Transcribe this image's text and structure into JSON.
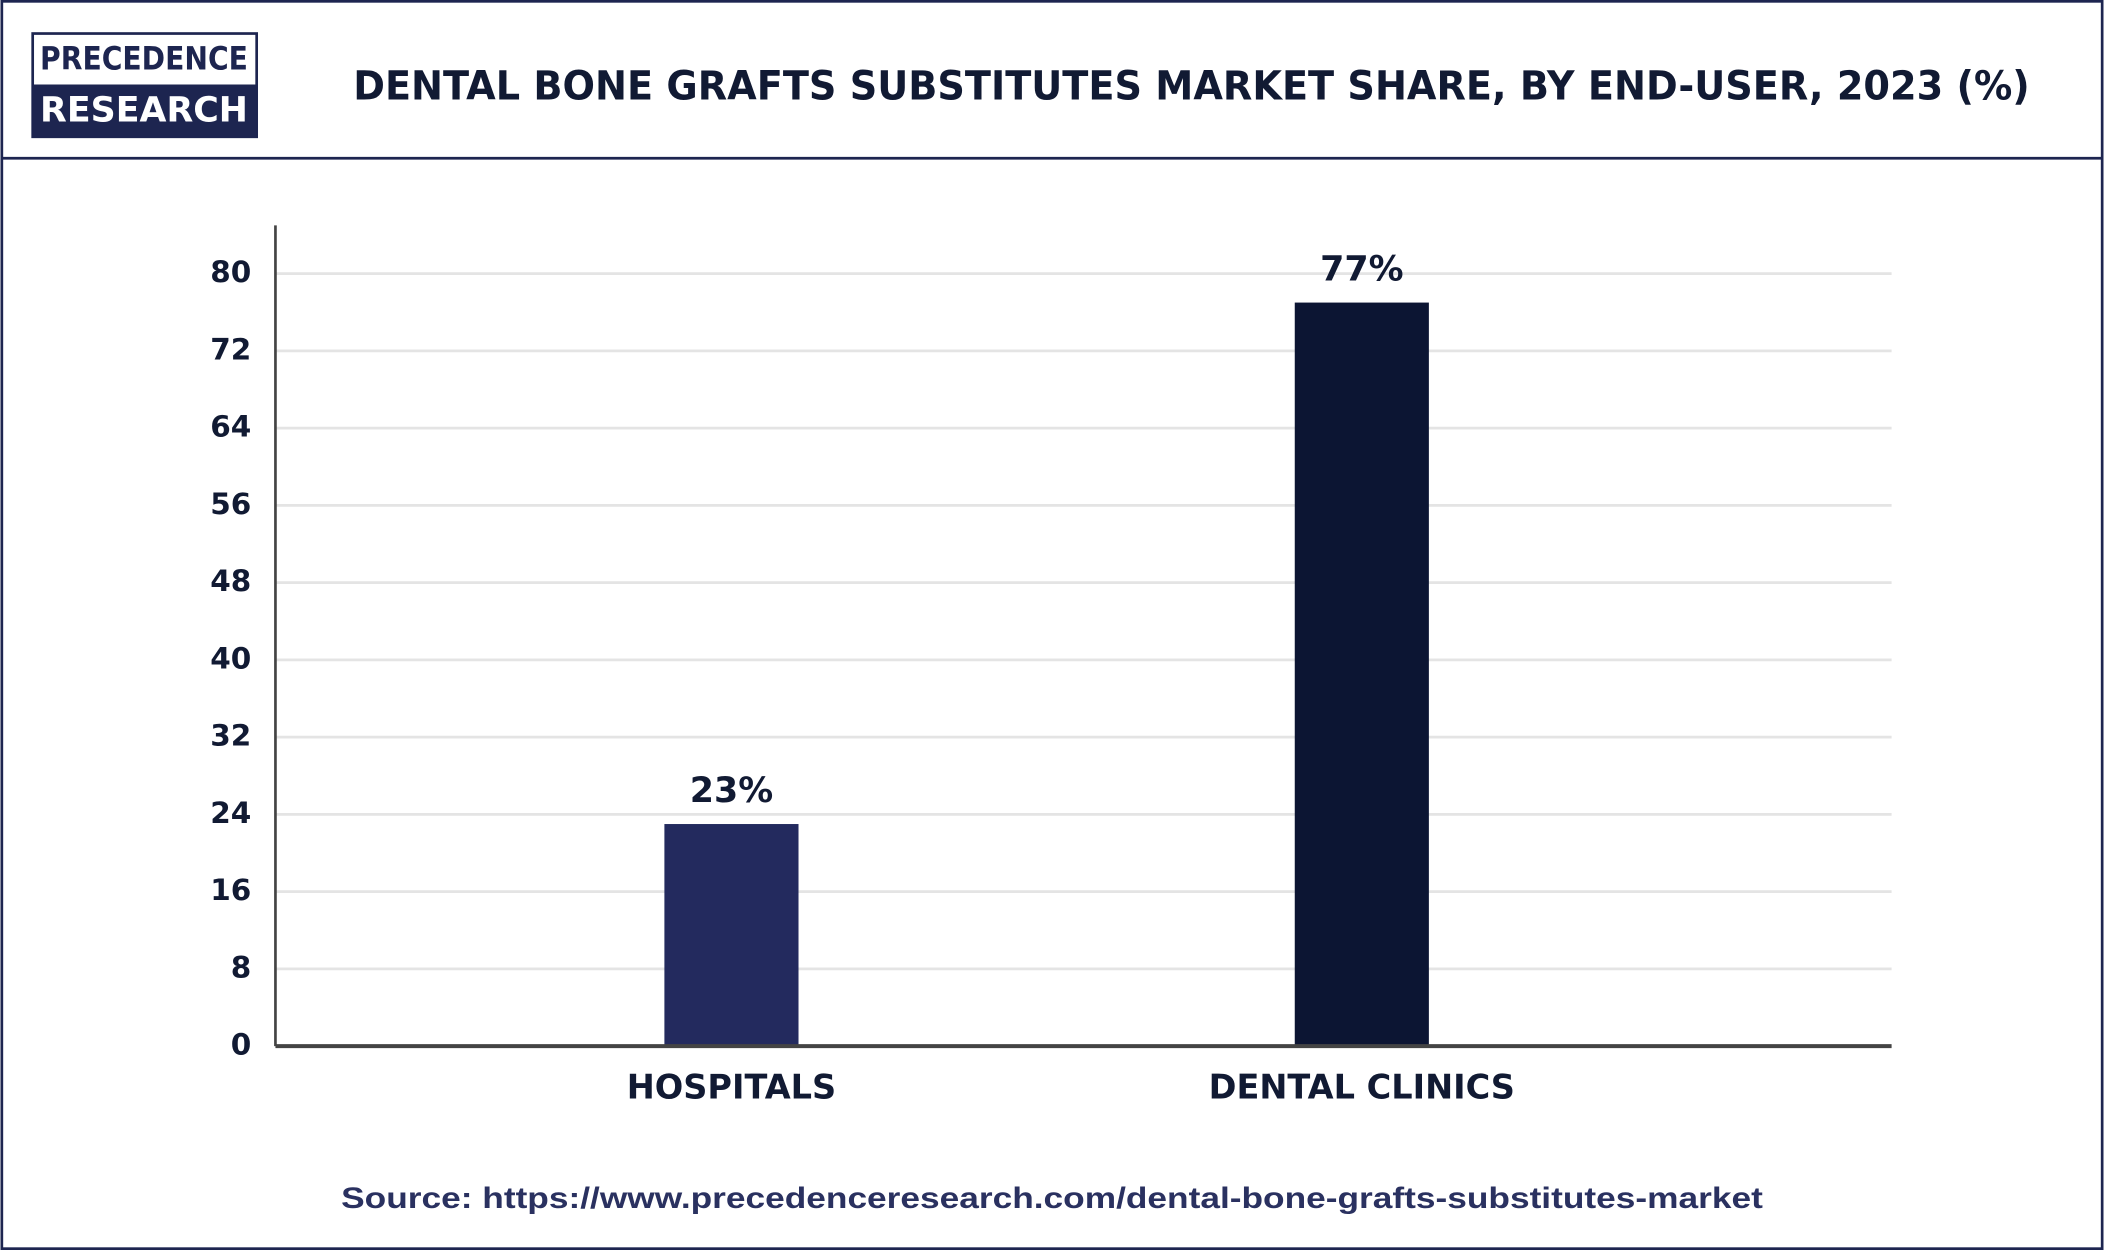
{
  "logo": {
    "line1": "PRECEDENCE",
    "line2": "RESEARCH"
  },
  "chart_data": {
    "type": "bar",
    "title": "DENTAL BONE GRAFTS SUBSTITUTES MARKET SHARE, BY END-USER, 2023 (%)",
    "categories": [
      "HOSPITALS",
      "DENTAL CLINICS"
    ],
    "values": [
      23,
      77
    ],
    "value_labels": [
      "23%",
      "77%"
    ],
    "colors": [
      "#232a5e",
      "#0c1533"
    ],
    "ylim": [
      0,
      85
    ],
    "yticks": [
      0,
      8,
      16,
      24,
      32,
      40,
      48,
      56,
      64,
      72,
      80
    ],
    "grid": true,
    "source": "Source: https://www.precedenceresearch.com/dental-bone-grafts-substitutes-market"
  }
}
